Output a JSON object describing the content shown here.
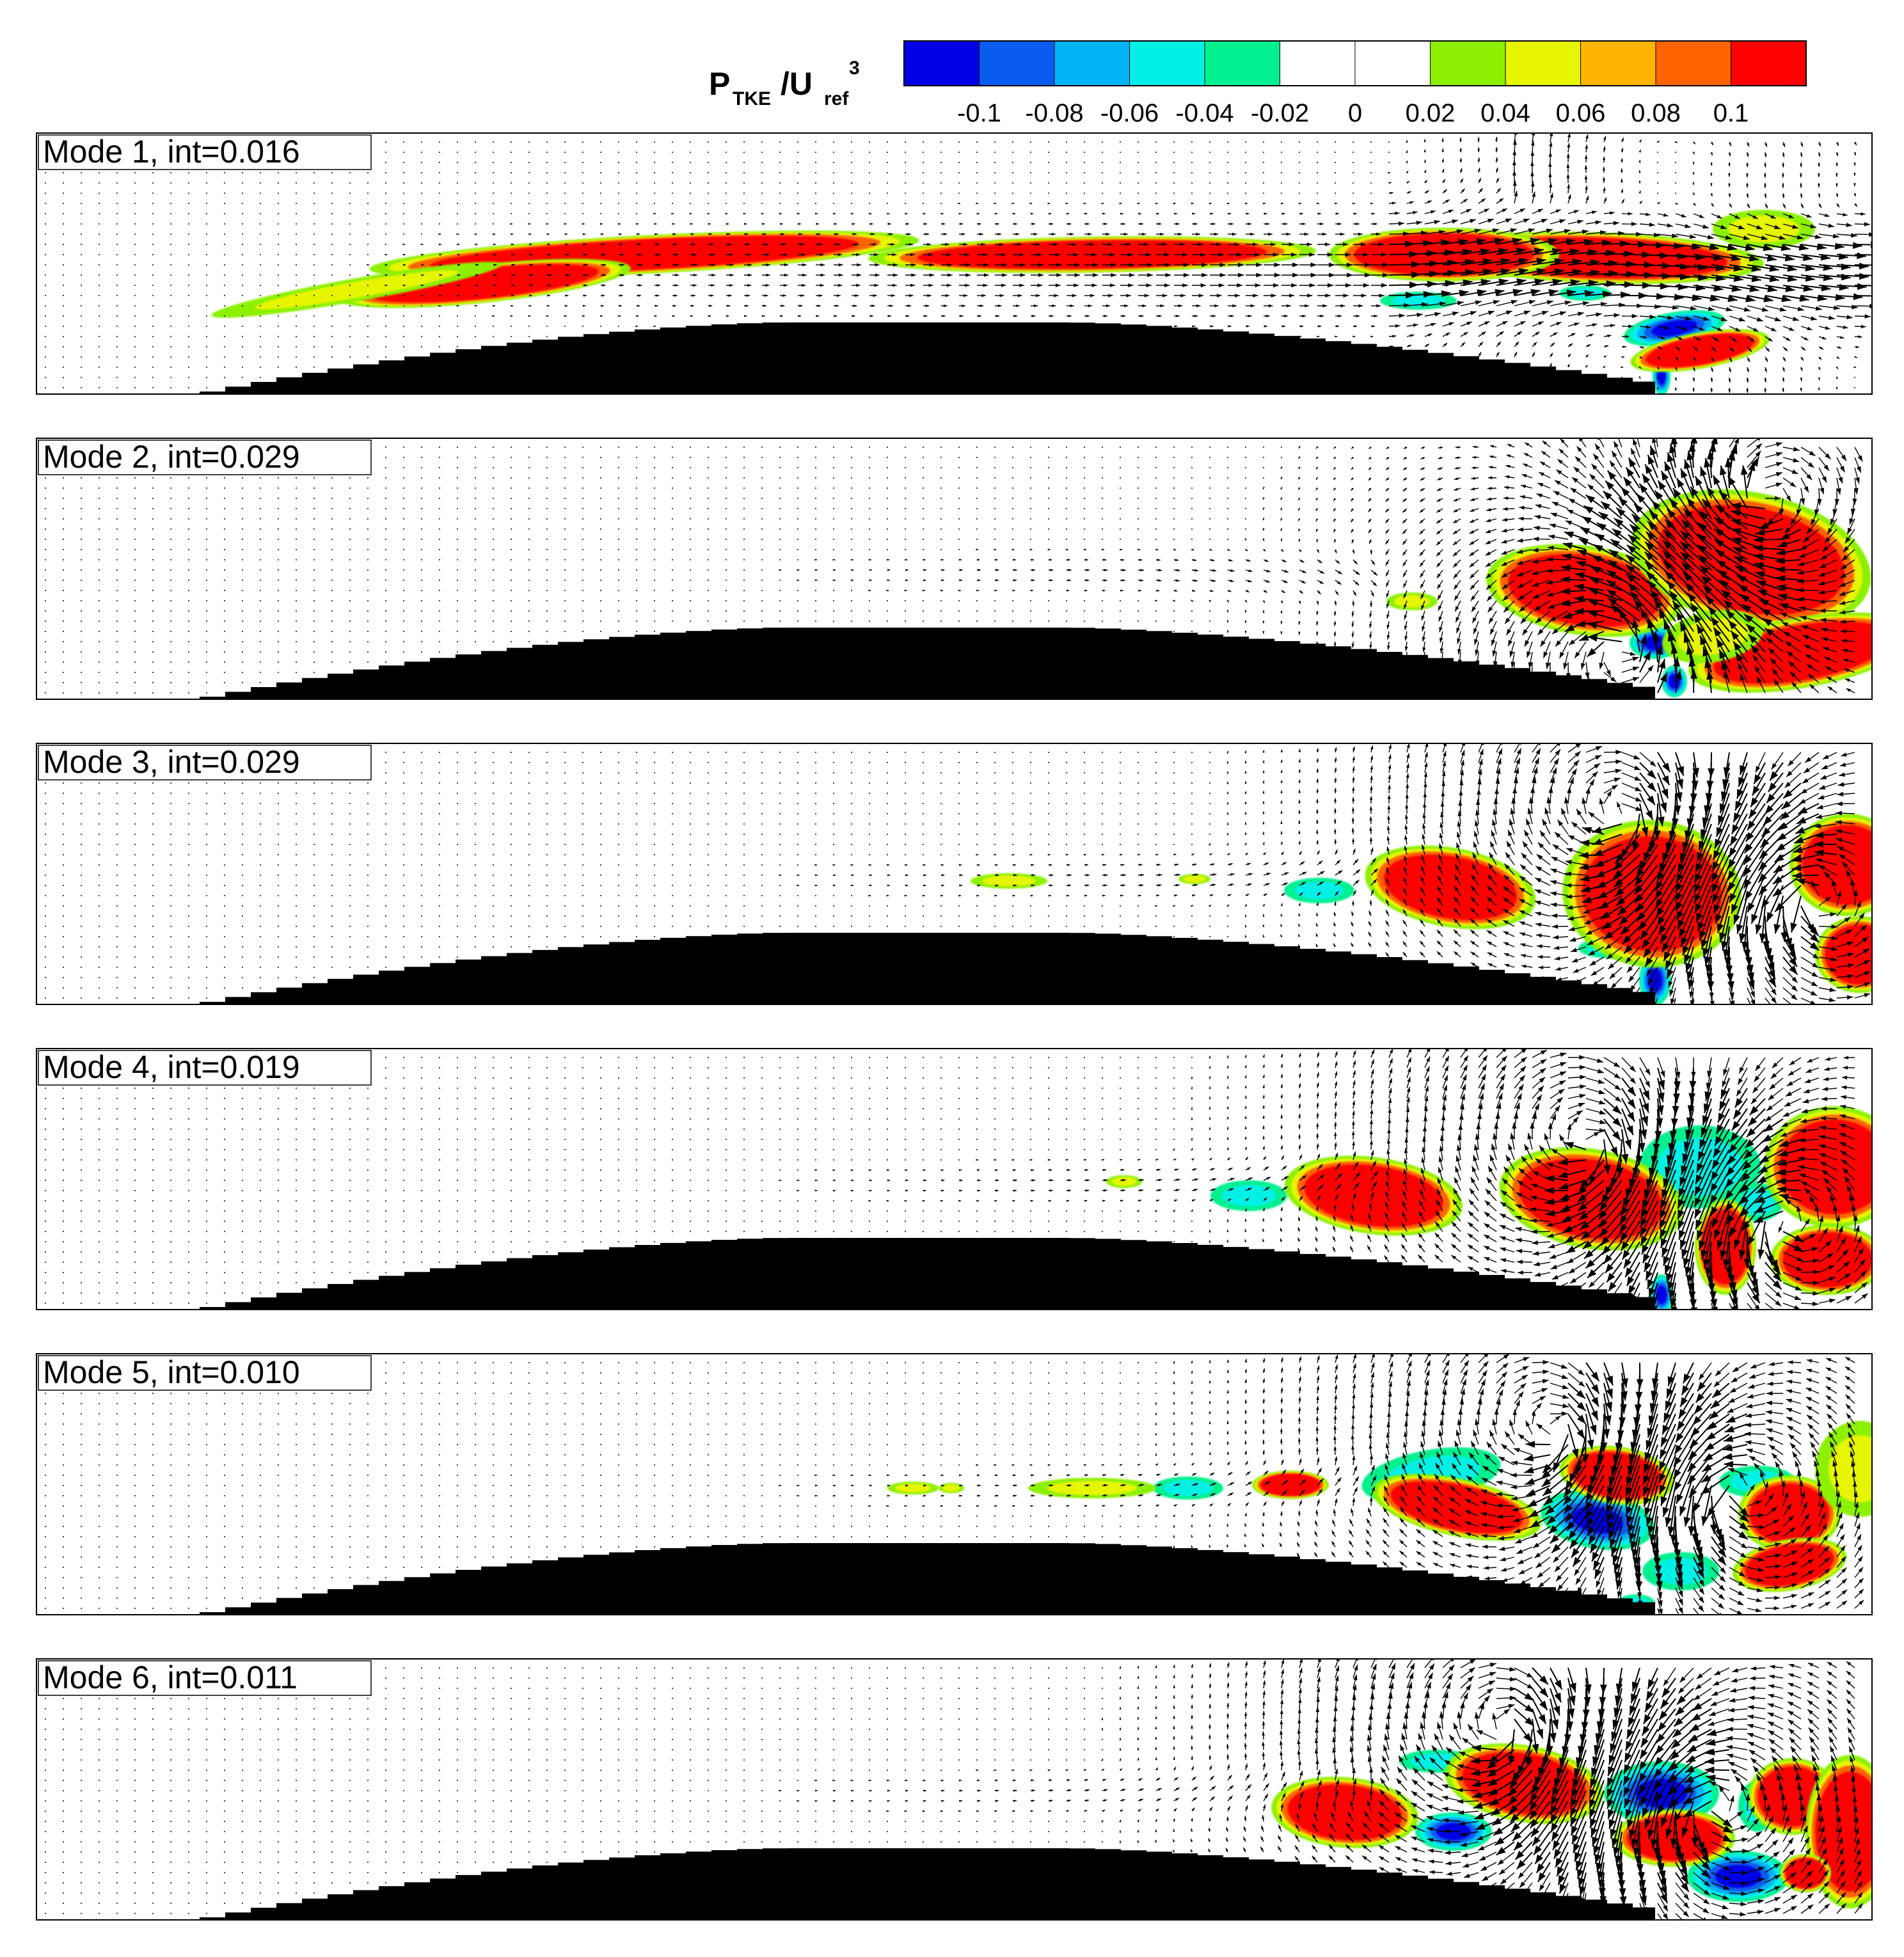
{
  "colorbar": {
    "label_main": "P",
    "label_sub1": "TKE",
    "label_slash": "/U",
    "label_sub2": "ref",
    "label_sup": "3",
    "ticks": [
      "-0.1",
      "-0.08",
      "-0.06",
      "-0.04",
      "-0.02",
      "0",
      "0.02",
      "0.04",
      "0.06",
      "0.08",
      "0.1"
    ],
    "colors": [
      "#0000e6",
      "#0a5bf0",
      "#00b4f5",
      "#00f0e6",
      "#00f090",
      "#ffffff",
      "#ffffff",
      "#8cf000",
      "#e6f500",
      "#ffb400",
      "#ff6400",
      "#ff0000"
    ]
  },
  "panels": [
    {
      "label": "Mode 1, int=0.016"
    },
    {
      "label": "Mode 2, int=0.029"
    },
    {
      "label": "Mode 3, int=0.029"
    },
    {
      "label": "Mode 4, int=0.019"
    },
    {
      "label": "Mode 5, int=0.010"
    },
    {
      "label": "Mode 6, int=0.011"
    }
  ],
  "chart_data": {
    "type": "heatmap",
    "colorbar_range": [
      -0.1,
      0.1
    ],
    "colorbar_levels": [
      -0.1,
      -0.08,
      -0.06,
      -0.04,
      -0.02,
      0,
      0.02,
      0.04,
      0.06,
      0.08,
      0.1
    ],
    "grid": false,
    "legend_placement": "top",
    "series": [
      {
        "name": "Mode 1",
        "int": 0.016
      },
      {
        "name": "Mode 2",
        "int": 0.029
      },
      {
        "name": "Mode 3",
        "int": 0.029
      },
      {
        "name": "Mode 4",
        "int": 0.019
      },
      {
        "name": "Mode 5",
        "int": 0.01
      },
      {
        "name": "Mode 6",
        "int": 0.011
      }
    ]
  }
}
